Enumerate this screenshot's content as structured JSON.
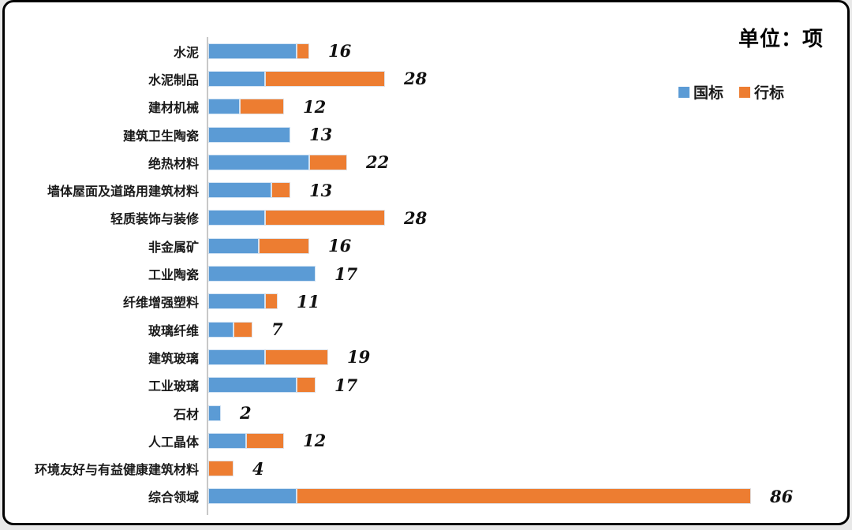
{
  "title": "单位：项",
  "colors": {
    "guobiao_blue": "#5B9BD5",
    "hangbiao_orange": "#ED7D31",
    "axis_gray": "#C8C8C8"
  },
  "legend": [
    {
      "label": "国标",
      "color": "#5B9BD5"
    },
    {
      "label": "行标",
      "color": "#ED7D31"
    }
  ],
  "chart_data": {
    "type": "bar",
    "orientation": "horizontal",
    "stacked": true,
    "title": "单位：项",
    "legend_position": "right-top",
    "grid": false,
    "xlim": [
      0,
      88
    ],
    "categories": [
      "水泥",
      "水泥制品",
      "建材机械",
      "建筑卫生陶瓷",
      "绝热材料",
      "墙体屋面及道路用建筑材料",
      "轻质装饰与装修",
      "非金属矿",
      "工业陶瓷",
      "纤维增强塑料",
      "玻璃纤维",
      "建筑玻璃",
      "工业玻璃",
      "石材",
      "人工晶体",
      "环境友好与有益健康建筑材料",
      "综合领域"
    ],
    "series": [
      {
        "name": "国标",
        "color": "#5B9BD5",
        "values": [
          14,
          9,
          5,
          13,
          16,
          10,
          9,
          8,
          17,
          9,
          4,
          9,
          14,
          2,
          6,
          0,
          14
        ]
      },
      {
        "name": "行标",
        "color": "#ED7D31",
        "values": [
          2,
          19,
          7,
          0,
          6,
          3,
          19,
          8,
          0,
          2,
          3,
          10,
          3,
          0,
          6,
          4,
          72
        ]
      }
    ],
    "totals": [
      16,
      28,
      12,
      13,
      22,
      13,
      28,
      16,
      17,
      11,
      7,
      19,
      17,
      2,
      12,
      4,
      86
    ]
  }
}
